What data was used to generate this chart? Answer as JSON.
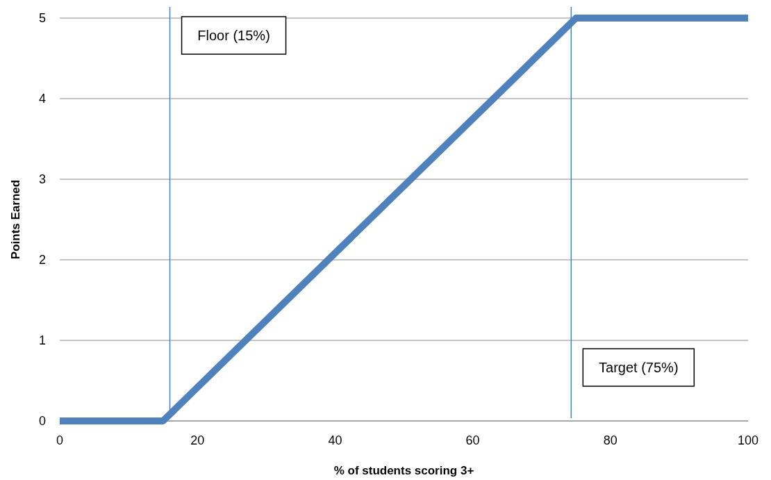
{
  "chart_data": {
    "type": "line",
    "xlabel": "% of students scoring 3+",
    "ylabel": "Points Earned",
    "series": [
      {
        "color": "#4f81bd",
        "x": [
          0,
          15,
          75,
          100
        ],
        "values": [
          0,
          0,
          5,
          5
        ]
      }
    ],
    "xlim": [
      0,
      100
    ],
    "xticks": [
      0,
      20,
      40,
      60,
      80,
      100
    ],
    "ylim": [
      0,
      5
    ],
    "yticks": [
      0,
      1,
      2,
      3,
      4,
      5
    ],
    "grid": "y",
    "marker": "none",
    "line_style": "solid",
    "ref_lines": [
      {
        "axis": "x",
        "value": 16,
        "label": "Floor (15%)",
        "color": "#4f81bd"
      },
      {
        "axis": "x",
        "value": 74.3,
        "label": "Target (75%)",
        "color": "#4f81bd"
      }
    ]
  }
}
